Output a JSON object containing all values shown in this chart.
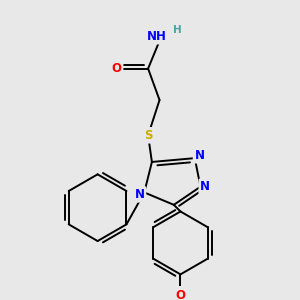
{
  "bg_color": "#e8e8e8",
  "atom_colors": {
    "O": "#ff0000",
    "N": "#0000ff",
    "S": "#ccaa00",
    "C": "#000000",
    "H": "#4ca3a3"
  },
  "bond_lw": 1.4,
  "font_size": 8.5
}
